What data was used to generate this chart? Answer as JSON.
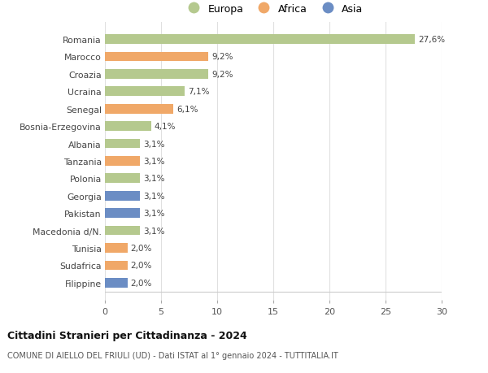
{
  "categories": [
    "Romania",
    "Marocco",
    "Croazia",
    "Ucraina",
    "Senegal",
    "Bosnia-Erzegovina",
    "Albania",
    "Tanzania",
    "Polonia",
    "Georgia",
    "Pakistan",
    "Macedonia d/N.",
    "Tunisia",
    "Sudafrica",
    "Filippine"
  ],
  "values": [
    27.6,
    9.2,
    9.2,
    7.1,
    6.1,
    4.1,
    3.1,
    3.1,
    3.1,
    3.1,
    3.1,
    3.1,
    2.0,
    2.0,
    2.0
  ],
  "labels": [
    "27,6%",
    "9,2%",
    "9,2%",
    "7,1%",
    "6,1%",
    "4,1%",
    "3,1%",
    "3,1%",
    "3,1%",
    "3,1%",
    "3,1%",
    "3,1%",
    "2,0%",
    "2,0%",
    "2,0%"
  ],
  "continents": [
    "Europa",
    "Africa",
    "Europa",
    "Europa",
    "Africa",
    "Europa",
    "Europa",
    "Africa",
    "Europa",
    "Asia",
    "Asia",
    "Europa",
    "Africa",
    "Africa",
    "Asia"
  ],
  "colors": {
    "Europa": "#b5c98e",
    "Africa": "#f0a868",
    "Asia": "#6b8dc4"
  },
  "title": "Cittadini Stranieri per Cittadinanza - 2024",
  "subtitle": "COMUNE DI AIELLO DEL FRIULI (UD) - Dati ISTAT al 1° gennaio 2024 - TUTTITALIA.IT",
  "xlim": [
    0,
    30
  ],
  "xticks": [
    0,
    5,
    10,
    15,
    20,
    25,
    30
  ],
  "background_color": "#ffffff",
  "plot_bg_color": "#ffffff",
  "grid_color": "#e0e0e0",
  "bar_height": 0.55
}
